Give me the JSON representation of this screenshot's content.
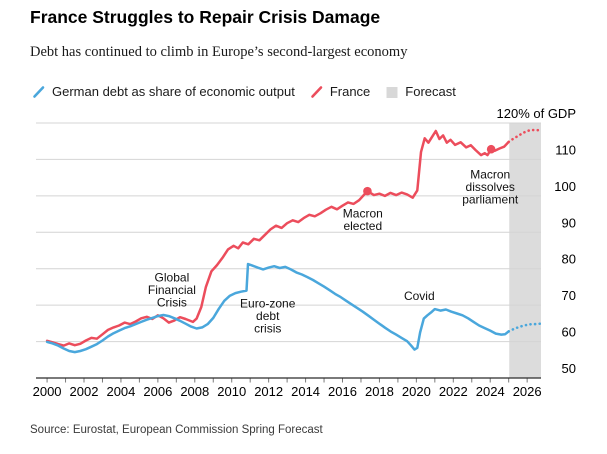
{
  "header": {
    "title": "France Struggles to Repair Crisis Damage",
    "subtitle": "Debt has continued to climb in Europe’s second-largest economy"
  },
  "legend": [
    {
      "key": "germany",
      "label": "German debt as share of economic output",
      "swatch": "line",
      "color": "#4aa7dc"
    },
    {
      "key": "france",
      "label": "France",
      "swatch": "line",
      "color": "#ec4d5c"
    },
    {
      "key": "forecast",
      "label": "Forecast",
      "swatch": "box",
      "color": "#d8d8d8"
    }
  ],
  "source": "Source: Eurostat, European Commission Spring Forecast",
  "colors": {
    "france": "#ec4d5c",
    "germany": "#4aa7dc",
    "forecast_band": "#dcdcdc",
    "grid": "#d4d4d4",
    "axis": "#2b2b2b",
    "tick": "#7a7a7a",
    "text": "#000000"
  },
  "chart_data": {
    "type": "line",
    "title": "France Struggles to Repair Crisis Damage",
    "subtitle": "Debt has continued to climb in Europe’s second-largest economy",
    "unit_label": "120% of GDP",
    "ylabel": "% of GDP",
    "ylim": [
      50,
      120
    ],
    "xlim": [
      1999.4,
      2026.75
    ],
    "y_tick_labels": [
      50,
      60,
      70,
      80,
      90,
      100,
      110
    ],
    "y_gridlines": [
      60,
      70,
      80,
      90,
      100,
      110,
      120
    ],
    "x_tick_labels": [
      2000,
      2002,
      2004,
      2006,
      2008,
      2010,
      2012,
      2014,
      2016,
      2018,
      2020,
      2022,
      2024,
      2026
    ],
    "x_minor_tick_step": 1,
    "grid": true,
    "legend_position": "top",
    "forecast_band": {
      "start": 2025.03,
      "end": 2026.75
    },
    "series": [
      {
        "name": "France",
        "color": "#ec4d5c",
        "solid": [
          [
            2000.0,
            60.2
          ],
          [
            2000.3,
            59.8
          ],
          [
            2000.6,
            59.3
          ],
          [
            2000.9,
            58.9
          ],
          [
            2001.2,
            59.5
          ],
          [
            2001.5,
            59.0
          ],
          [
            2001.8,
            59.4
          ],
          [
            2002.1,
            60.3
          ],
          [
            2002.4,
            61.0
          ],
          [
            2002.7,
            60.8
          ],
          [
            2003.0,
            62.0
          ],
          [
            2003.3,
            63.2
          ],
          [
            2003.6,
            63.9
          ],
          [
            2003.9,
            64.4
          ],
          [
            2004.2,
            65.2
          ],
          [
            2004.5,
            64.8
          ],
          [
            2004.8,
            65.5
          ],
          [
            2005.1,
            66.4
          ],
          [
            2005.4,
            66.8
          ],
          [
            2005.7,
            66.2
          ],
          [
            2006.0,
            67.2
          ],
          [
            2006.3,
            66.4
          ],
          [
            2006.6,
            65.2
          ],
          [
            2006.9,
            65.8
          ],
          [
            2007.2,
            66.7
          ],
          [
            2007.5,
            66.2
          ],
          [
            2007.9,
            65.4
          ],
          [
            2008.1,
            66.3
          ],
          [
            2008.35,
            69.5
          ],
          [
            2008.6,
            75.0
          ],
          [
            2008.9,
            79.3
          ],
          [
            2009.2,
            81.0
          ],
          [
            2009.5,
            83.0
          ],
          [
            2009.8,
            85.3
          ],
          [
            2010.1,
            86.3
          ],
          [
            2010.35,
            85.6
          ],
          [
            2010.6,
            87.2
          ],
          [
            2010.9,
            86.7
          ],
          [
            2011.2,
            88.2
          ],
          [
            2011.5,
            87.8
          ],
          [
            2011.8,
            89.3
          ],
          [
            2012.1,
            90.8
          ],
          [
            2012.4,
            91.8
          ],
          [
            2012.7,
            91.2
          ],
          [
            2013.0,
            92.5
          ],
          [
            2013.3,
            93.3
          ],
          [
            2013.6,
            92.8
          ],
          [
            2013.9,
            93.9
          ],
          [
            2014.2,
            94.8
          ],
          [
            2014.5,
            94.4
          ],
          [
            2014.8,
            95.2
          ],
          [
            2015.1,
            96.2
          ],
          [
            2015.4,
            97.0
          ],
          [
            2015.7,
            96.3
          ],
          [
            2016.0,
            97.3
          ],
          [
            2016.3,
            98.2
          ],
          [
            2016.6,
            97.8
          ],
          [
            2016.9,
            98.8
          ],
          [
            2017.35,
            101.3
          ],
          [
            2017.7,
            100.2
          ],
          [
            2018.0,
            100.6
          ],
          [
            2018.3,
            100.0
          ],
          [
            2018.6,
            100.8
          ],
          [
            2018.9,
            100.2
          ],
          [
            2019.2,
            100.9
          ],
          [
            2019.5,
            100.4
          ],
          [
            2019.8,
            99.5
          ],
          [
            2020.05,
            101.5
          ],
          [
            2020.25,
            112.0
          ],
          [
            2020.45,
            115.8
          ],
          [
            2020.65,
            114.6
          ],
          [
            2020.85,
            116.2
          ],
          [
            2021.05,
            117.8
          ],
          [
            2021.25,
            115.6
          ],
          [
            2021.45,
            116.6
          ],
          [
            2021.65,
            114.6
          ],
          [
            2021.85,
            115.4
          ],
          [
            2022.1,
            114.0
          ],
          [
            2022.4,
            114.7
          ],
          [
            2022.7,
            113.3
          ],
          [
            2022.95,
            113.9
          ],
          [
            2023.2,
            112.6
          ],
          [
            2023.5,
            111.2
          ],
          [
            2023.7,
            111.7
          ],
          [
            2023.85,
            111.2
          ],
          [
            2024.05,
            112.8
          ],
          [
            2024.25,
            112.4
          ],
          [
            2024.5,
            113.0
          ],
          [
            2024.75,
            113.5
          ],
          [
            2025.0,
            114.8
          ]
        ],
        "forecast": [
          [
            2025.0,
            114.8
          ],
          [
            2025.25,
            115.7
          ],
          [
            2025.5,
            116.4
          ],
          [
            2025.75,
            117.2
          ],
          [
            2026.0,
            117.8
          ],
          [
            2026.25,
            118.1
          ],
          [
            2026.5,
            118.0
          ],
          [
            2026.7,
            118.1
          ]
        ]
      },
      {
        "name": "German debt as share of economic output",
        "color": "#4aa7dc",
        "solid": [
          [
            2000.0,
            59.9
          ],
          [
            2000.3,
            59.5
          ],
          [
            2000.6,
            58.9
          ],
          [
            2000.9,
            58.1
          ],
          [
            2001.2,
            57.4
          ],
          [
            2001.5,
            57.1
          ],
          [
            2001.8,
            57.4
          ],
          [
            2002.1,
            57.9
          ],
          [
            2002.4,
            58.6
          ],
          [
            2002.7,
            59.3
          ],
          [
            2003.0,
            60.3
          ],
          [
            2003.3,
            61.4
          ],
          [
            2003.6,
            62.3
          ],
          [
            2003.9,
            63.0
          ],
          [
            2004.2,
            63.7
          ],
          [
            2004.5,
            64.2
          ],
          [
            2004.8,
            64.8
          ],
          [
            2005.1,
            65.4
          ],
          [
            2005.4,
            66.0
          ],
          [
            2005.7,
            66.5
          ],
          [
            2006.0,
            67.0
          ],
          [
            2006.3,
            67.3
          ],
          [
            2006.6,
            67.0
          ],
          [
            2006.9,
            66.4
          ],
          [
            2007.2,
            65.7
          ],
          [
            2007.5,
            64.9
          ],
          [
            2007.8,
            64.1
          ],
          [
            2008.1,
            63.6
          ],
          [
            2008.4,
            63.9
          ],
          [
            2008.7,
            64.8
          ],
          [
            2009.0,
            66.5
          ],
          [
            2009.3,
            69.0
          ],
          [
            2009.6,
            71.2
          ],
          [
            2009.9,
            72.6
          ],
          [
            2010.2,
            73.3
          ],
          [
            2010.5,
            73.7
          ],
          [
            2010.8,
            74.0
          ],
          [
            2010.88,
            81.3
          ],
          [
            2011.1,
            80.9
          ],
          [
            2011.4,
            80.3
          ],
          [
            2011.7,
            79.8
          ],
          [
            2012.0,
            80.3
          ],
          [
            2012.3,
            80.7
          ],
          [
            2012.6,
            80.2
          ],
          [
            2012.9,
            80.5
          ],
          [
            2013.2,
            79.8
          ],
          [
            2013.5,
            79.0
          ],
          [
            2013.8,
            78.4
          ],
          [
            2014.1,
            77.7
          ],
          [
            2014.4,
            76.9
          ],
          [
            2014.7,
            76.0
          ],
          [
            2015.0,
            75.1
          ],
          [
            2015.3,
            74.1
          ],
          [
            2015.6,
            73.1
          ],
          [
            2015.9,
            72.2
          ],
          [
            2016.2,
            71.2
          ],
          [
            2016.5,
            70.2
          ],
          [
            2016.8,
            69.2
          ],
          [
            2017.1,
            68.2
          ],
          [
            2017.4,
            67.1
          ],
          [
            2017.7,
            66.0
          ],
          [
            2018.0,
            64.9
          ],
          [
            2018.3,
            63.8
          ],
          [
            2018.6,
            62.8
          ],
          [
            2018.9,
            61.9
          ],
          [
            2019.2,
            61.0
          ],
          [
            2019.5,
            60.1
          ],
          [
            2019.7,
            59.0
          ],
          [
            2019.9,
            57.8
          ],
          [
            2020.05,
            58.3
          ],
          [
            2020.2,
            62.5
          ],
          [
            2020.4,
            66.3
          ],
          [
            2020.6,
            67.2
          ],
          [
            2020.8,
            68.0
          ],
          [
            2021.0,
            68.9
          ],
          [
            2021.3,
            68.5
          ],
          [
            2021.6,
            68.8
          ],
          [
            2021.9,
            68.2
          ],
          [
            2022.2,
            67.7
          ],
          [
            2022.5,
            67.2
          ],
          [
            2022.8,
            66.4
          ],
          [
            2023.1,
            65.4
          ],
          [
            2023.4,
            64.4
          ],
          [
            2023.7,
            63.7
          ],
          [
            2024.0,
            63.0
          ],
          [
            2024.3,
            62.2
          ],
          [
            2024.6,
            61.9
          ],
          [
            2024.8,
            62.0
          ],
          [
            2025.0,
            62.8
          ]
        ],
        "forecast": [
          [
            2025.0,
            62.8
          ],
          [
            2025.25,
            63.4
          ],
          [
            2025.5,
            63.9
          ],
          [
            2025.75,
            64.3
          ],
          [
            2026.0,
            64.6
          ],
          [
            2026.25,
            64.8
          ],
          [
            2026.5,
            64.8
          ],
          [
            2026.7,
            64.9
          ]
        ]
      }
    ],
    "markers": [
      {
        "series": "France",
        "x": 2017.35,
        "y": 101.3,
        "event": "Macron elected"
      },
      {
        "series": "France",
        "x": 2024.05,
        "y": 112.8,
        "event": "Macron dissolves parliament"
      }
    ],
    "annotations": [
      {
        "slug": "global-financial-crisis",
        "lines": [
          "Global",
          "Financial",
          "Crisis"
        ],
        "x": 2006.76,
        "y": 74.2
      },
      {
        "slug": "euro-zone-debt-crisis",
        "lines": [
          "Euro-zone",
          "debt",
          "crisis"
        ],
        "x": 2011.95,
        "y": 67.0
      },
      {
        "slug": "macron-elected",
        "lines": [
          "Macron",
          "elected"
        ],
        "x": 2017.1,
        "y": 93.4
      },
      {
        "slug": "covid",
        "lines": [
          "Covid"
        ],
        "x": 2020.16,
        "y": 72.5
      },
      {
        "slug": "macron-dissolves-parliament",
        "lines": [
          "Macron",
          "dissolves",
          "parliament"
        ],
        "x": 2024.0,
        "y": 102.4
      }
    ]
  }
}
